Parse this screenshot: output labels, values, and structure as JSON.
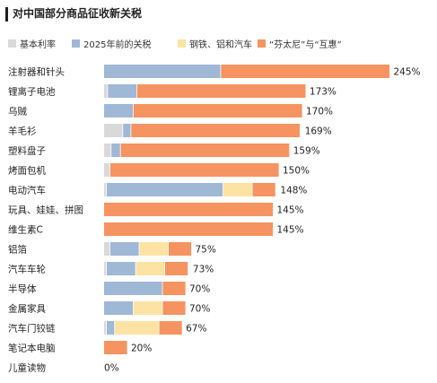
{
  "title": "对中国部分商品征收新关税",
  "colors": {
    "base": "#d9d9d9",
    "pre2025": "#9fb8d6",
    "steel": "#fde3a3",
    "fentanyl": "#f59361",
    "gridline": "#e6e6e6",
    "text": "#222222"
  },
  "legend": {
    "placement": "top-left",
    "items": [
      {
        "key": "base",
        "label": "基本利率"
      },
      {
        "key": "pre2025",
        "label": "2025年前的关税"
      },
      {
        "key": "steel",
        "label": "钢铁、铝和汽车"
      },
      {
        "key": "fentanyl",
        "label": "“芬太尼”与“互惠”"
      }
    ]
  },
  "chart_data": {
    "type": "bar",
    "orientation": "horizontal",
    "stacked": true,
    "title": "对中国部分商品征收新关税",
    "xlabel": "",
    "ylabel": "",
    "xlim": [
      0,
      250
    ],
    "grid": "none",
    "categories": [
      "注射器和针头",
      "锂离子电池",
      "乌贼",
      "羊毛衫",
      "塑料盘子",
      "烤面包机",
      "电动汽车",
      "玩具、娃娃、拼图",
      "维生素C",
      "铝箔",
      "汽车车轮",
      "半导体",
      "金属家具",
      "汽车门铰链",
      "笔记本电脑",
      "儿童读物"
    ],
    "series": [
      {
        "name": "基本利率",
        "key": "base",
        "values": [
          0,
          3,
          0,
          16,
          6,
          5,
          2,
          0,
          0,
          5,
          2,
          0,
          0,
          2,
          0,
          0
        ]
      },
      {
        "name": "2025年前的关税",
        "key": "pre2025",
        "values": [
          100,
          25,
          25,
          7,
          8,
          0,
          100,
          0,
          0,
          25,
          25,
          50,
          25,
          7,
          0,
          0
        ]
      },
      {
        "name": "钢铁、铝和汽车",
        "key": "steel",
        "values": [
          0,
          0,
          0,
          0,
          0,
          0,
          25,
          0,
          0,
          25,
          25,
          0,
          25,
          38,
          0,
          0
        ]
      },
      {
        "name": "“芬太尼”与“互惠”",
        "key": "fentanyl",
        "values": [
          145,
          145,
          145,
          145,
          145,
          145,
          20,
          145,
          145,
          20,
          20,
          20,
          20,
          20,
          20,
          0
        ]
      }
    ],
    "totals": [
      245,
      173,
      170,
      169,
      159,
      150,
      148,
      145,
      145,
      75,
      73,
      70,
      70,
      67,
      20,
      0
    ],
    "total_labels": [
      "245%",
      "173%",
      "170%",
      "169%",
      "159%",
      "150%",
      "148%",
      "145%",
      "145%",
      "75%",
      "73%",
      "70%",
      "70%",
      "67%",
      "20%",
      "0%"
    ]
  }
}
